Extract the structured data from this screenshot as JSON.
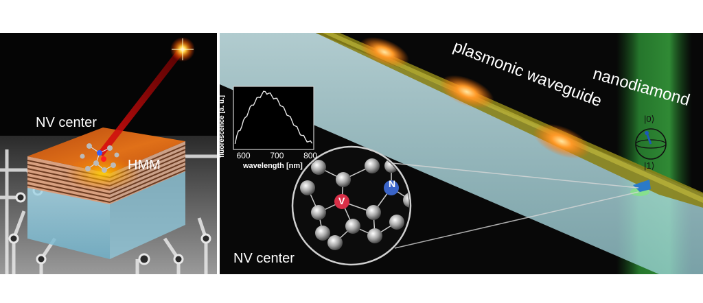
{
  "left_panel": {
    "nv_center_label": "NV center",
    "hmm_label": "HMM"
  },
  "right_panel": {
    "waveguide_label": "plasmonic waveguide",
    "nanodiamond_label": "nanodiamond",
    "ket0_label": "|0⟩",
    "ket1_label": "|1⟩",
    "nv_center_label": "NV center",
    "atom_n_label": "N",
    "atom_v_label": "V"
  },
  "chart_data": {
    "type": "line",
    "xlabel": "wavelength [nm]",
    "ylabel": "fluorescence [a. u.]",
    "xticks": [
      600,
      700,
      800
    ],
    "xlim": [
      570,
      810
    ],
    "ylim": [
      0,
      1
    ],
    "grid": false,
    "x": [
      575,
      585,
      595,
      605,
      615,
      625,
      635,
      645,
      655,
      665,
      675,
      685,
      695,
      705,
      715,
      725,
      735,
      745,
      755,
      765,
      775,
      785,
      795,
      805
    ],
    "y": [
      0.05,
      0.28,
      0.36,
      0.52,
      0.62,
      0.74,
      0.8,
      0.88,
      0.93,
      0.98,
      0.95,
      0.9,
      0.86,
      0.8,
      0.72,
      0.63,
      0.55,
      0.46,
      0.37,
      0.28,
      0.2,
      0.14,
      0.09,
      0.06
    ]
  }
}
